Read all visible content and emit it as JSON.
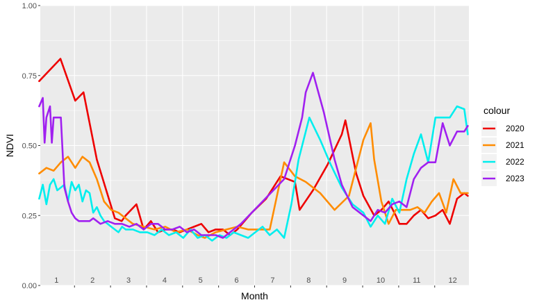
{
  "chart_data": {
    "type": "line",
    "xlabel": "Month",
    "ylabel": "NDVI",
    "ylim": [
      0,
      1
    ],
    "xlim": [
      0.55,
      12.45
    ],
    "y_ticks": [
      "0.00",
      "0.25",
      "0.50",
      "0.75",
      "1.00"
    ],
    "y_tick_values": [
      0,
      0.25,
      0.5,
      0.75,
      1
    ],
    "x_tick_labels": [
      "1",
      "2",
      "3",
      "4",
      "5",
      "6",
      "7",
      "8",
      "9",
      "10",
      "11",
      "12"
    ],
    "grid": true,
    "background": "#ebebeb",
    "legend": {
      "title": "colour",
      "position": "right"
    },
    "series": [
      {
        "name": "2020",
        "color": "#ee0000",
        "x": [
          0.52,
          1.11,
          1.52,
          1.75,
          2.12,
          2.62,
          2.81,
          2.92,
          3.22,
          3.42,
          3.62,
          3.82,
          4.02,
          4.22,
          4.42,
          4.62,
          4.82,
          5.02,
          5.22,
          5.42,
          5.62,
          5.82,
          6.02,
          6.42,
          6.82,
          7.22,
          7.62,
          7.75,
          8.12,
          8.52,
          8.92,
          9.02,
          9.32,
          9.52,
          9.82,
          10.02,
          10.22,
          10.42,
          10.52,
          10.72,
          10.92,
          11.12,
          11.32,
          11.52,
          11.72,
          11.92,
          12.12,
          12.22,
          12.32,
          12.42
        ],
        "y": [
          0.73,
          0.81,
          0.66,
          0.69,
          0.45,
          0.24,
          0.23,
          0.25,
          0.29,
          0.2,
          0.23,
          0.19,
          0.2,
          0.2,
          0.19,
          0.2,
          0.21,
          0.22,
          0.19,
          0.2,
          0.2,
          0.18,
          0.2,
          0.26,
          0.31,
          0.39,
          0.37,
          0.27,
          0.34,
          0.43,
          0.54,
          0.59,
          0.4,
          0.32,
          0.25,
          0.27,
          0.3,
          0.25,
          0.22,
          0.22,
          0.25,
          0.27,
          0.24,
          0.25,
          0.27,
          0.22,
          0.31,
          0.32,
          0.33,
          0.32
        ]
      },
      {
        "name": "2021",
        "color": "#ff8c00",
        "x": [
          0.52,
          0.72,
          0.92,
          1.12,
          1.22,
          1.32,
          1.52,
          1.72,
          1.92,
          2.12,
          2.32,
          2.52,
          2.72,
          2.92,
          3.12,
          3.42,
          3.72,
          4.02,
          4.32,
          4.62,
          4.92,
          5.12,
          5.42,
          5.72,
          6.02,
          6.32,
          6.72,
          6.92,
          7.32,
          7.62,
          7.92,
          8.32,
          8.72,
          9.12,
          9.52,
          9.72,
          9.82,
          10.02,
          10.22,
          10.42,
          10.62,
          10.82,
          11.02,
          11.22,
          11.42,
          11.62,
          11.82,
          12.02,
          12.22,
          12.42
        ],
        "y": [
          0.4,
          0.42,
          0.41,
          0.44,
          0.45,
          0.46,
          0.42,
          0.46,
          0.44,
          0.38,
          0.3,
          0.27,
          0.26,
          0.24,
          0.22,
          0.21,
          0.2,
          0.21,
          0.19,
          0.2,
          0.18,
          0.17,
          0.19,
          0.2,
          0.21,
          0.2,
          0.2,
          0.2,
          0.44,
          0.39,
          0.37,
          0.33,
          0.27,
          0.32,
          0.52,
          0.58,
          0.45,
          0.3,
          0.22,
          0.27,
          0.27,
          0.27,
          0.28,
          0.26,
          0.3,
          0.33,
          0.26,
          0.38,
          0.33,
          0.33
        ]
      },
      {
        "name": "2022",
        "color": "#00eeee",
        "x": [
          0.52,
          0.62,
          0.72,
          0.82,
          0.92,
          1.02,
          1.12,
          1.22,
          1.32,
          1.42,
          1.52,
          1.62,
          1.72,
          1.82,
          1.92,
          2.02,
          2.12,
          2.22,
          2.32,
          2.42,
          2.52,
          2.62,
          2.72,
          2.82,
          2.92,
          3.12,
          3.32,
          3.52,
          3.72,
          3.92,
          4.12,
          4.32,
          4.52,
          4.72,
          4.92,
          5.12,
          5.32,
          5.52,
          5.72,
          5.92,
          6.12,
          6.32,
          6.52,
          6.72,
          6.92,
          7.12,
          7.32,
          7.52,
          7.72,
          8.02,
          8.32,
          8.62,
          8.92,
          9.22,
          9.52,
          9.72,
          9.92,
          10.12,
          10.32,
          10.52,
          10.72,
          10.92,
          11.12,
          11.32,
          11.52,
          11.72,
          11.92,
          12.12,
          12.32,
          12.42
        ],
        "y": [
          0.31,
          0.36,
          0.29,
          0.36,
          0.38,
          0.34,
          0.35,
          0.36,
          0.3,
          0.37,
          0.34,
          0.36,
          0.3,
          0.34,
          0.33,
          0.26,
          0.28,
          0.25,
          0.23,
          0.22,
          0.21,
          0.2,
          0.19,
          0.21,
          0.2,
          0.2,
          0.19,
          0.19,
          0.18,
          0.2,
          0.18,
          0.19,
          0.17,
          0.2,
          0.17,
          0.18,
          0.16,
          0.18,
          0.17,
          0.19,
          0.18,
          0.17,
          0.19,
          0.21,
          0.18,
          0.2,
          0.17,
          0.29,
          0.45,
          0.6,
          0.52,
          0.43,
          0.35,
          0.29,
          0.26,
          0.21,
          0.25,
          0.22,
          0.31,
          0.26,
          0.38,
          0.47,
          0.54,
          0.44,
          0.6,
          0.6,
          0.6,
          0.64,
          0.63,
          0.54
        ]
      },
      {
        "name": "2023",
        "color": "#a020f0",
        "x": [
          0.52,
          0.62,
          0.67,
          0.72,
          0.82,
          0.87,
          0.92,
          1.02,
          1.12,
          1.22,
          1.32,
          1.42,
          1.52,
          1.62,
          1.72,
          1.82,
          1.92,
          2.02,
          2.22,
          2.42,
          2.62,
          2.82,
          3.02,
          3.22,
          3.42,
          3.62,
          3.82,
          4.02,
          4.22,
          4.42,
          4.62,
          4.82,
          5.02,
          5.22,
          5.42,
          5.62,
          5.82,
          6.12,
          6.42,
          6.72,
          7.02,
          7.32,
          7.62,
          7.82,
          7.92,
          8.12,
          8.42,
          8.72,
          8.92,
          9.22,
          9.52,
          9.72,
          9.92,
          10.12,
          10.32,
          10.52,
          10.72,
          10.92,
          11.12,
          11.32,
          11.52,
          11.72,
          11.92,
          12.12,
          12.32,
          12.42
        ],
        "y": [
          0.64,
          0.67,
          0.51,
          0.6,
          0.64,
          0.51,
          0.6,
          0.6,
          0.6,
          0.35,
          0.3,
          0.26,
          0.24,
          0.23,
          0.23,
          0.23,
          0.23,
          0.24,
          0.22,
          0.23,
          0.22,
          0.22,
          0.21,
          0.22,
          0.2,
          0.22,
          0.22,
          0.2,
          0.2,
          0.21,
          0.19,
          0.2,
          0.18,
          0.18,
          0.18,
          0.17,
          0.19,
          0.22,
          0.26,
          0.3,
          0.34,
          0.38,
          0.5,
          0.6,
          0.69,
          0.76,
          0.62,
          0.45,
          0.36,
          0.28,
          0.25,
          0.23,
          0.27,
          0.26,
          0.29,
          0.3,
          0.28,
          0.38,
          0.42,
          0.44,
          0.44,
          0.58,
          0.5,
          0.55,
          0.55,
          0.57
        ]
      }
    ]
  }
}
